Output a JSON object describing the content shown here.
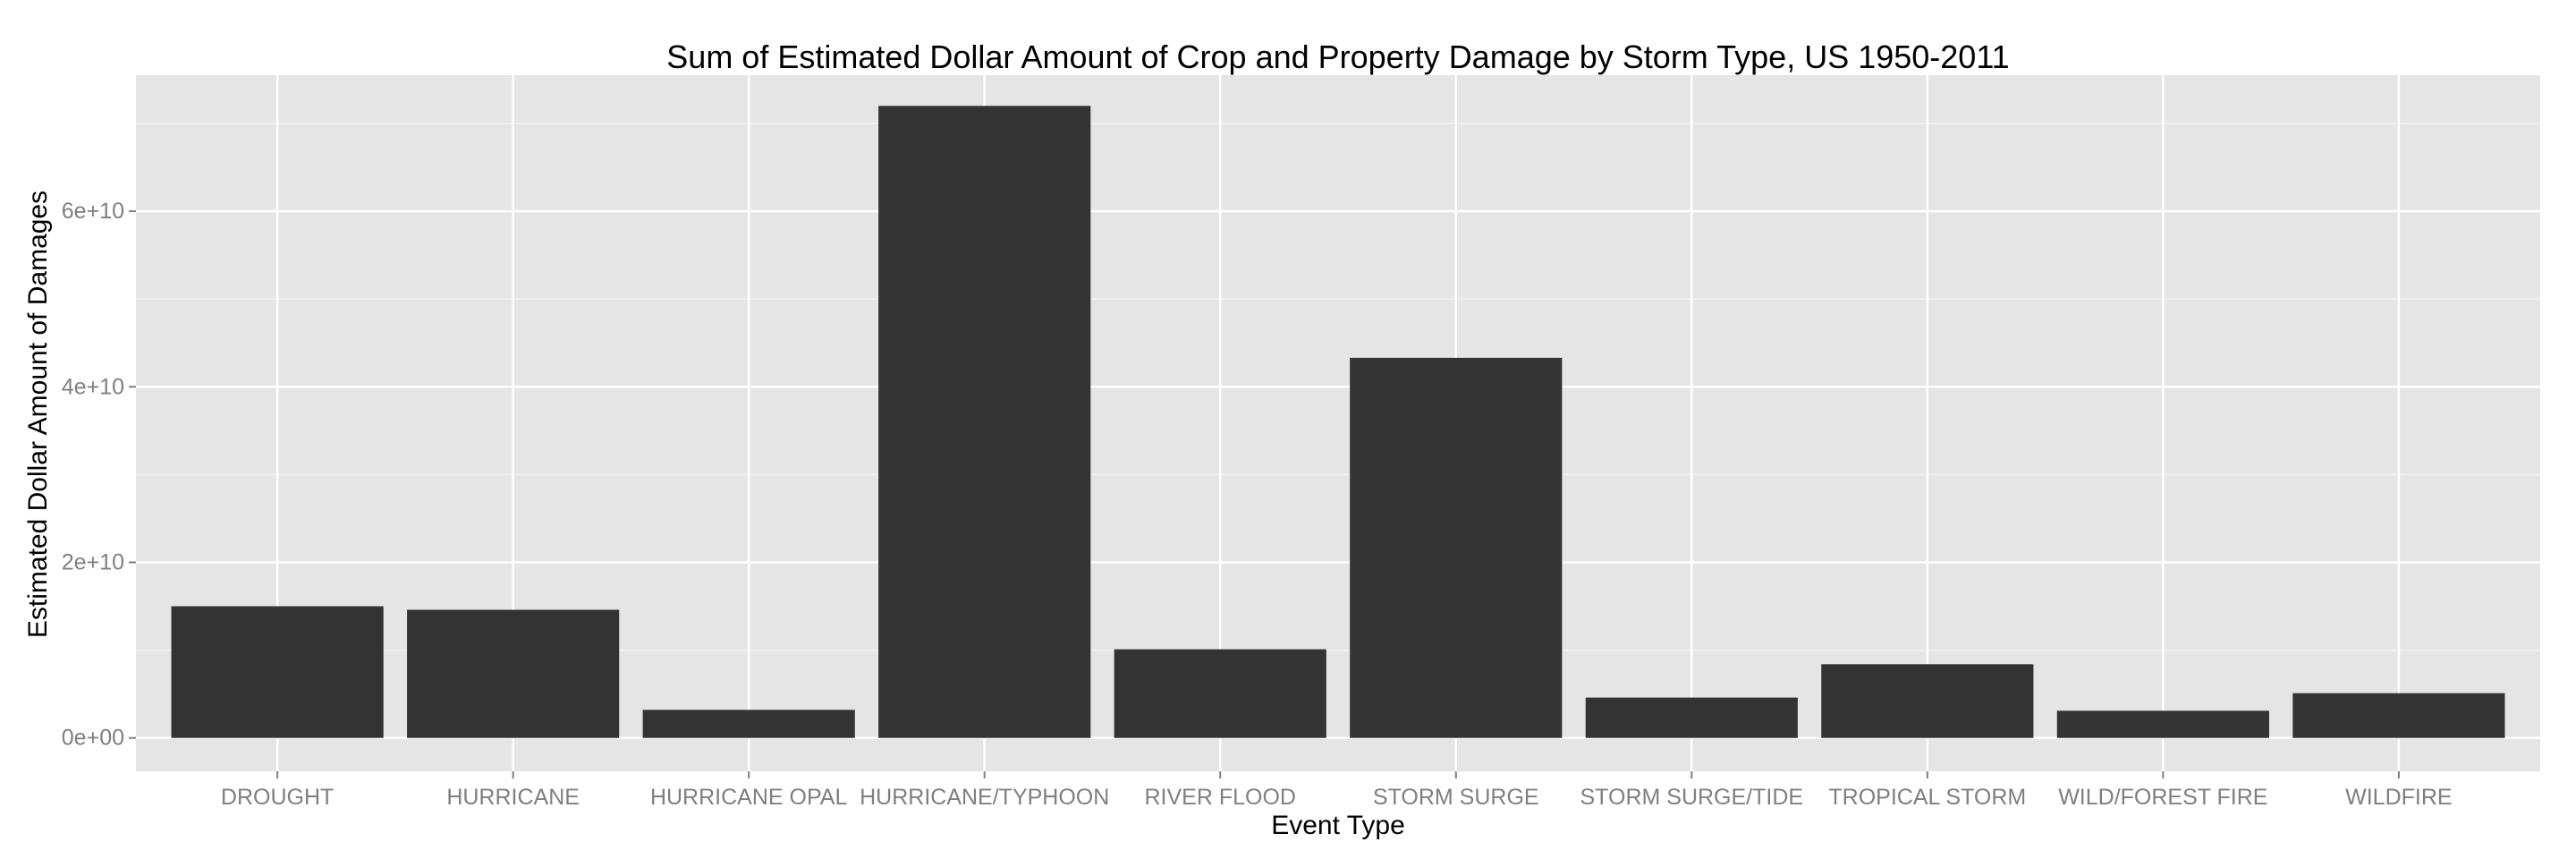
{
  "chart_data": {
    "type": "bar",
    "title": "Sum of Estimated Dollar Amount of Crop and Property Damage by Storm Type, US 1950-2011",
    "xlabel": "Event Type",
    "ylabel": "Estimated Dollar Amount of Damages",
    "categories": [
      "DROUGHT",
      "HURRICANE",
      "HURRICANE OPAL",
      "HURRICANE/TYPHOON",
      "RIVER FLOOD",
      "STORM SURGE",
      "STORM SURGE/TIDE",
      "TROPICAL STORM",
      "WILD/FOREST FIRE",
      "WILDFIRE"
    ],
    "values": [
      15000000000,
      14600000000,
      3200000000,
      72000000000,
      10100000000,
      43300000000,
      4600000000,
      8400000000,
      3100000000,
      5100000000
    ],
    "ylim": [
      -3800000000,
      75500000000
    ],
    "yticks": [
      0,
      20000000000,
      40000000000,
      60000000000
    ],
    "ytick_labels": [
      "0e+00",
      "2e+10",
      "4e+10",
      "6e+10"
    ],
    "grid": true,
    "colors": {
      "bar": "#333333",
      "panel": "#e5e5e5",
      "grid_major": "#ffffff",
      "grid_minor": "#f2f2f2",
      "tick_text": "#7f7f7f"
    }
  }
}
